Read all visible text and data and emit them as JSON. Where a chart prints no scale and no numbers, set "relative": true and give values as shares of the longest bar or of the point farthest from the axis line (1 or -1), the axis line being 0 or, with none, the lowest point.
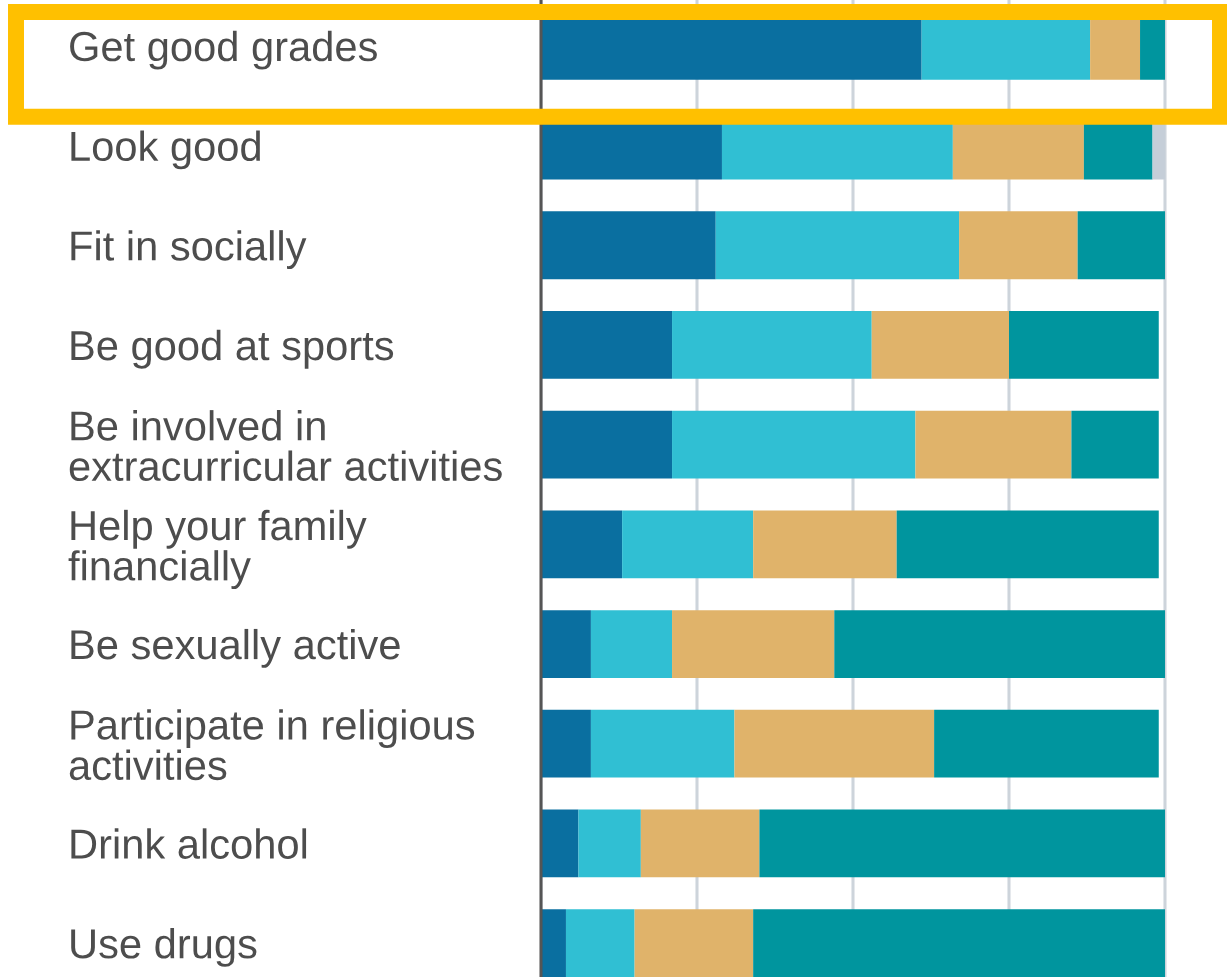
{
  "chart_data": {
    "type": "bar",
    "orientation": "horizontal",
    "stacked": true,
    "relative": true,
    "grid": "x",
    "tick_labels": "y",
    "categories": [
      "Get good grades",
      "Look good",
      "Fit in socially",
      "Be good at sports",
      "Be involved in extracurricular activities",
      "Help your family financially",
      "Be sexually active",
      "Participate in religious activities",
      "Drink alcohol",
      "Use drugs"
    ],
    "series": [
      {
        "color": "#0a6fa0",
        "values": [
          0.61,
          0.29,
          0.28,
          0.21,
          0.21,
          0.13,
          0.08,
          0.08,
          0.06,
          0.04
        ]
      },
      {
        "color": "#30bfd3",
        "values": [
          0.27,
          0.37,
          0.39,
          0.32,
          0.39,
          0.21,
          0.13,
          0.23,
          0.1,
          0.11
        ]
      },
      {
        "color": "#e0b36a",
        "values": [
          0.08,
          0.21,
          0.19,
          0.22,
          0.25,
          0.23,
          0.26,
          0.32,
          0.19,
          0.19
        ]
      },
      {
        "color": "#00959e",
        "values": [
          0.04,
          0.11,
          0.14,
          0.24,
          0.14,
          0.42,
          0.53,
          0.36,
          0.65,
          0.66
        ]
      },
      {
        "color": "#c5ced8",
        "values": [
          null,
          0.02,
          null,
          null,
          null,
          null,
          null,
          null,
          null,
          null
        ]
      }
    ]
  }
}
